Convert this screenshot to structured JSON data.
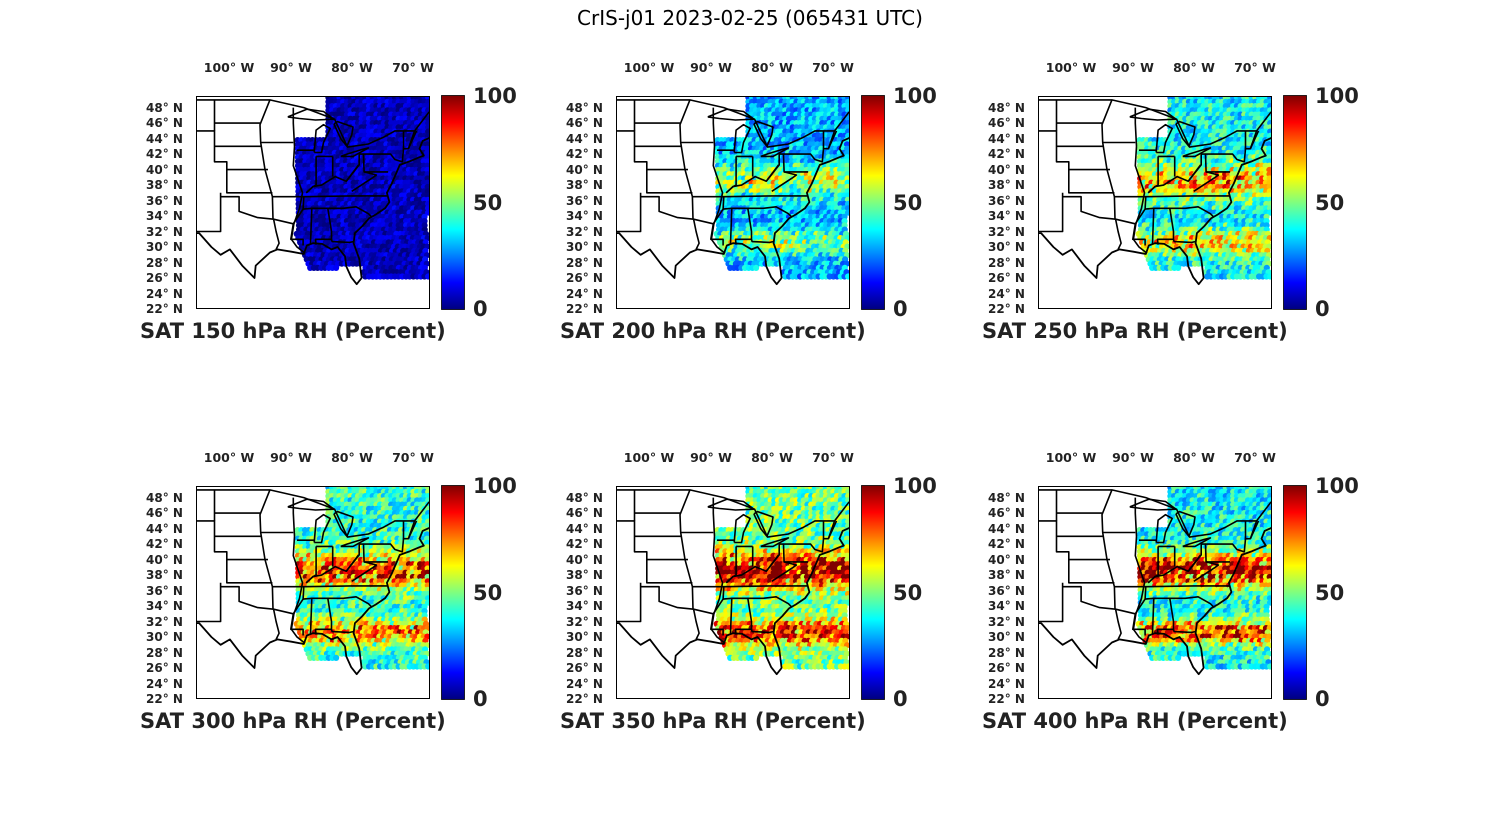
{
  "figure": {
    "title": "CrIS-j01 2023-02-25 (065431 UTC)"
  },
  "colorbar": {
    "ticks": [
      "100",
      "50",
      "0"
    ],
    "colormap": [
      "#00007f",
      "#0000ff",
      "#007fff",
      "#00ffff",
      "#7fff7f",
      "#ffff00",
      "#ff7f00",
      "#ff0000",
      "#7f0000"
    ]
  },
  "axes": {
    "lon_labels": [
      "100° W",
      "90° W",
      "80° W",
      "70° W"
    ],
    "lat_labels": [
      "48° N",
      "46° N",
      "44° N",
      "42° N",
      "40° N",
      "38° N",
      "36° N",
      "34° N",
      "32° N",
      "30° N",
      "28° N",
      "26° N",
      "24° N",
      "22° N"
    ],
    "lon_range": [
      -107,
      -69
    ],
    "lat_range": [
      22,
      49.5
    ]
  },
  "panels": [
    {
      "title": "SAT 150 hPa RH (Percent)",
      "level": 150,
      "mean_rh": 6
    },
    {
      "title": "SAT 200 hPa RH (Percent)",
      "level": 200,
      "mean_rh": 30
    },
    {
      "title": "SAT 250 hPa RH (Percent)",
      "level": 250,
      "mean_rh": 38
    },
    {
      "title": "SAT 300 hPa RH (Percent)",
      "level": 300,
      "mean_rh": 42
    },
    {
      "title": "SAT 350 hPa RH (Percent)",
      "level": 350,
      "mean_rh": 48
    },
    {
      "title": "SAT 400 hPa RH (Percent)",
      "level": 400,
      "mean_rh": 38
    }
  ]
}
